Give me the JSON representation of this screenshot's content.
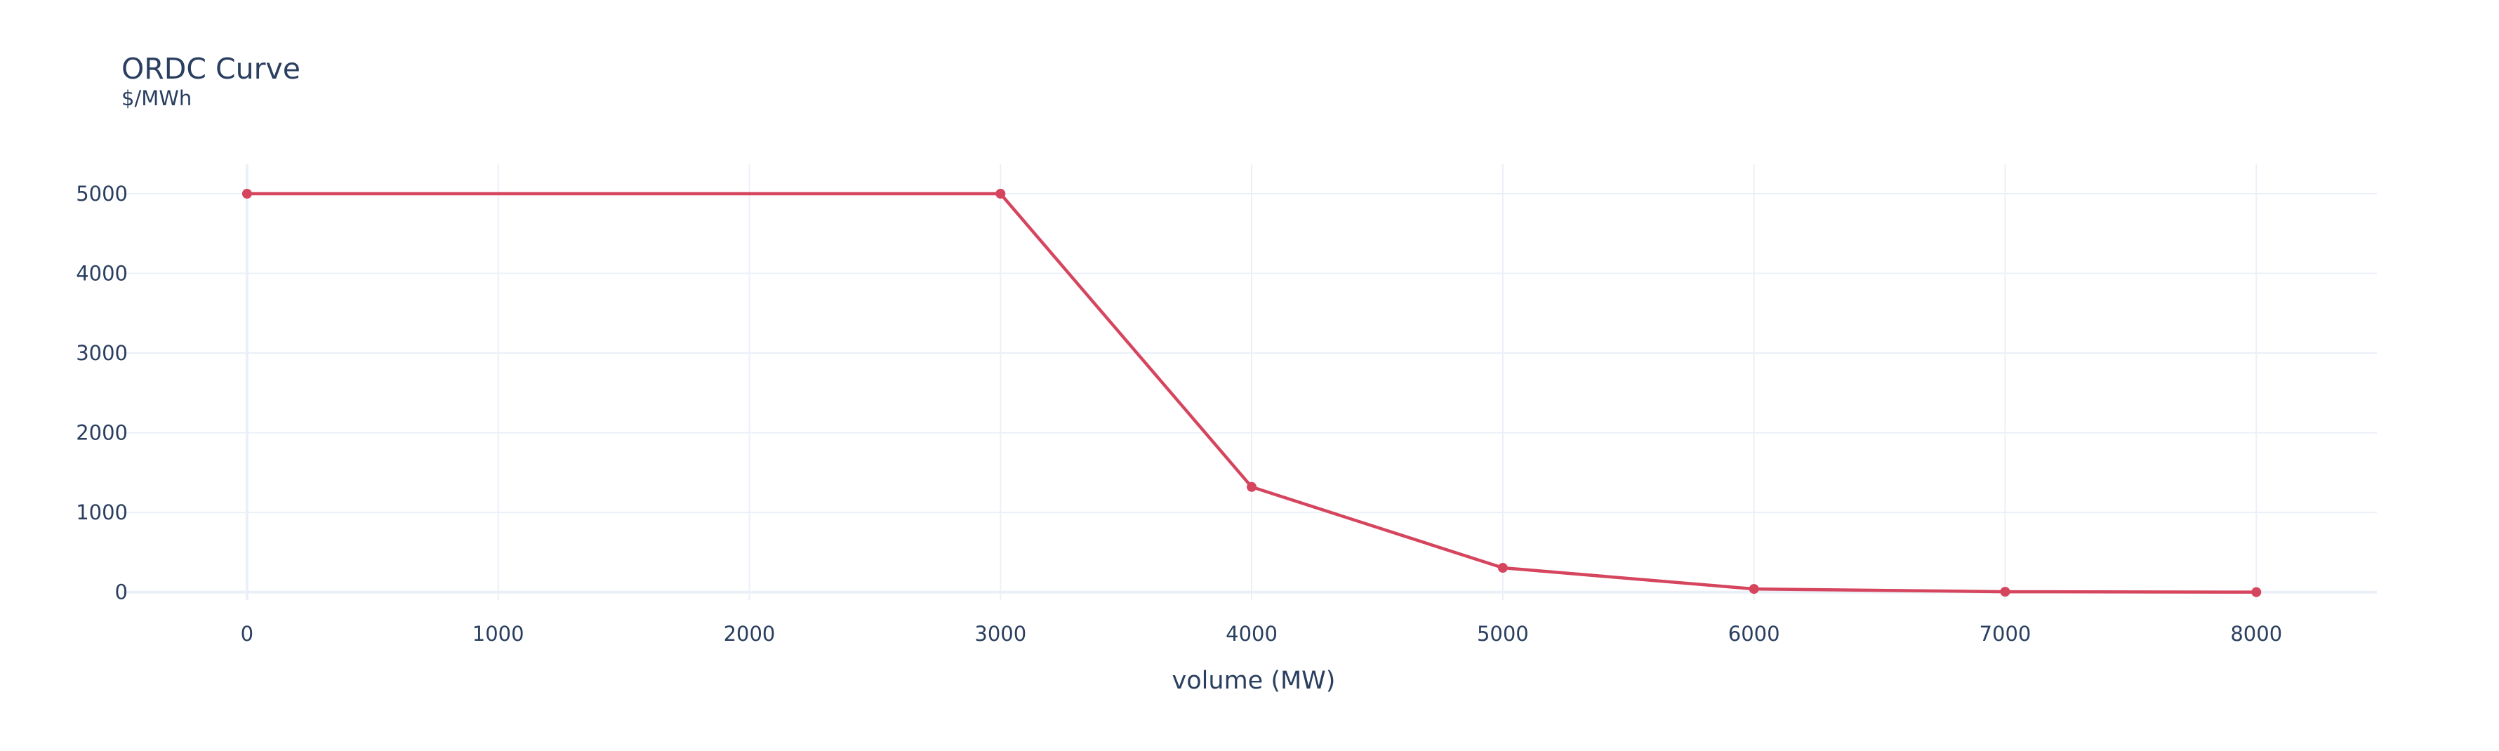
{
  "chart_data": {
    "type": "line",
    "title": "ORDC Curve",
    "subtitle": "$/MWh",
    "xlabel": "volume (MW)",
    "ylabel": "",
    "xlim": [
      -500,
      8480
    ],
    "ylim": [
      -100,
      5370
    ],
    "x_ticks": [
      0,
      1000,
      2000,
      3000,
      4000,
      5000,
      6000,
      7000,
      8000
    ],
    "y_ticks": [
      0,
      1000,
      2000,
      3000,
      4000,
      5000
    ],
    "grid": true,
    "legend": "none",
    "series": [
      {
        "color": "#d6455e",
        "x": [
          0,
          3000,
          4000,
          5000,
          6000,
          7000,
          8000
        ],
        "y": [
          5000,
          5000,
          1320,
          305,
          40,
          5,
          0
        ]
      }
    ]
  }
}
